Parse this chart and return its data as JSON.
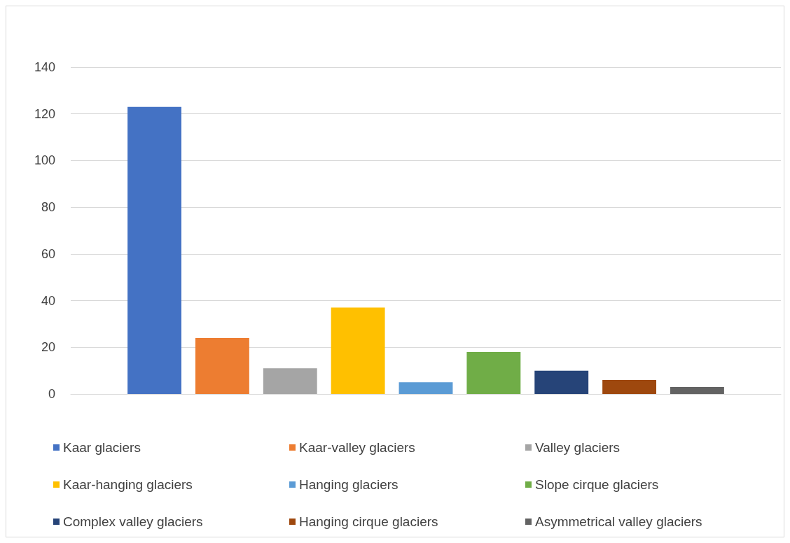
{
  "chart_data": {
    "type": "bar",
    "categories": [
      null
    ],
    "series": [
      {
        "name": "Kaar glaciers",
        "color": "#4472c4",
        "values": [
          123
        ]
      },
      {
        "name": "Kaar-valley glaciers",
        "color": "#ed7d31",
        "values": [
          24
        ]
      },
      {
        "name": "Valley glaciers",
        "color": "#a5a5a5",
        "values": [
          11
        ]
      },
      {
        "name": "Kaar-hanging glaciers",
        "color": "#ffc000",
        "values": [
          37
        ]
      },
      {
        "name": "Hanging glaciers",
        "color": "#5b9bd5",
        "values": [
          5
        ]
      },
      {
        "name": "Slope cirque glaciers",
        "color": "#70ad47",
        "values": [
          18
        ]
      },
      {
        "name": "Complex valley glaciers",
        "color": "#264478",
        "values": [
          10
        ]
      },
      {
        "name": "Hanging cirque glaciers",
        "color": "#9e480e",
        "values": [
          6
        ]
      },
      {
        "name": "Asymmetrical valley glaciers",
        "color": "#636363",
        "values": [
          3
        ]
      }
    ],
    "ylim": [
      0,
      140
    ],
    "yticks": [
      0,
      20,
      40,
      60,
      80,
      100,
      120,
      140
    ],
    "grid": "y",
    "legend": "bottom"
  }
}
